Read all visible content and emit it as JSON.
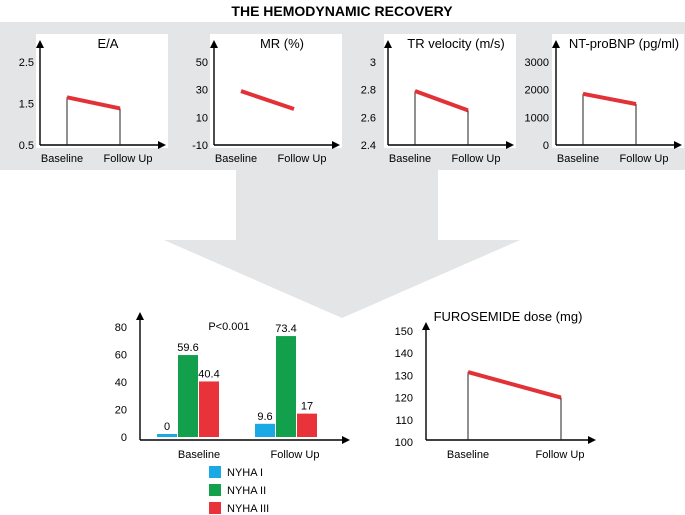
{
  "figure_title": "THE HEMODYNAMIC RECOVERY",
  "colors": {
    "band": "#e3e5e6",
    "panel": "#ffffff",
    "trend_line": "#e23237",
    "nyha1": "#1ba9e6",
    "nyha2": "#12a04d",
    "nyha3": "#e8333b"
  },
  "chart_data": [
    {
      "id": "ea",
      "type": "line",
      "title": "E/A",
      "categories": [
        "Baseline",
        "Follow Up"
      ],
      "ticks": [
        "2.5",
        "1.5",
        "0.5"
      ],
      "ylim": [
        0.5,
        2.5
      ],
      "values": [
        1.65,
        1.38
      ],
      "drop_lines": true
    },
    {
      "id": "mr",
      "type": "line",
      "title": "MR (%)",
      "categories": [
        "Baseline",
        "Follow Up"
      ],
      "ticks": [
        "50",
        "30",
        "10",
        "-10"
      ],
      "ylim": [
        -10,
        50
      ],
      "values": [
        29,
        16
      ],
      "drop_lines": false
    },
    {
      "id": "tr",
      "type": "line",
      "title": "TR velocity (m/s)",
      "categories": [
        "Baseline",
        "Follow Up"
      ],
      "ticks": [
        "3",
        "2.8",
        "2.6",
        "2.4"
      ],
      "ylim": [
        2.4,
        3.0
      ],
      "values": [
        2.79,
        2.65
      ],
      "drop_lines": true
    },
    {
      "id": "ntprobnp",
      "type": "line",
      "title": "NT-proBNP (pg/ml)",
      "categories": [
        "Baseline",
        "Follow Up"
      ],
      "ticks": [
        "3000",
        "2000",
        "1000",
        "0"
      ],
      "ylim": [
        0,
        3000
      ],
      "values": [
        1850,
        1480
      ],
      "drop_lines": true
    },
    {
      "id": "nyha",
      "type": "bar",
      "title": "",
      "annotation": "P<0.001",
      "categories": [
        "Baseline",
        "Follow Up"
      ],
      "ticks": [
        "80",
        "60",
        "40",
        "20",
        "0"
      ],
      "ylim": [
        0,
        80
      ],
      "series": [
        {
          "name": "NYHA I",
          "values": [
            0,
            9.6
          ],
          "labels": [
            "0",
            "9.6"
          ]
        },
        {
          "name": "NYHA II",
          "values": [
            59.6,
            73.4
          ],
          "labels": [
            "59.6",
            "73.4"
          ]
        },
        {
          "name": "NYHA III",
          "values": [
            40.4,
            17
          ],
          "labels": [
            "40.4",
            "17"
          ]
        }
      ]
    },
    {
      "id": "furosemide",
      "type": "line",
      "title": "FUROSEMIDE dose (mg)",
      "categories": [
        "Baseline",
        "Follow Up"
      ],
      "ticks": [
        "150",
        "140",
        "130",
        "120",
        "110",
        "100"
      ],
      "ylim": [
        100,
        150
      ],
      "values": [
        131.5,
        120
      ],
      "drop_lines": true
    }
  ]
}
